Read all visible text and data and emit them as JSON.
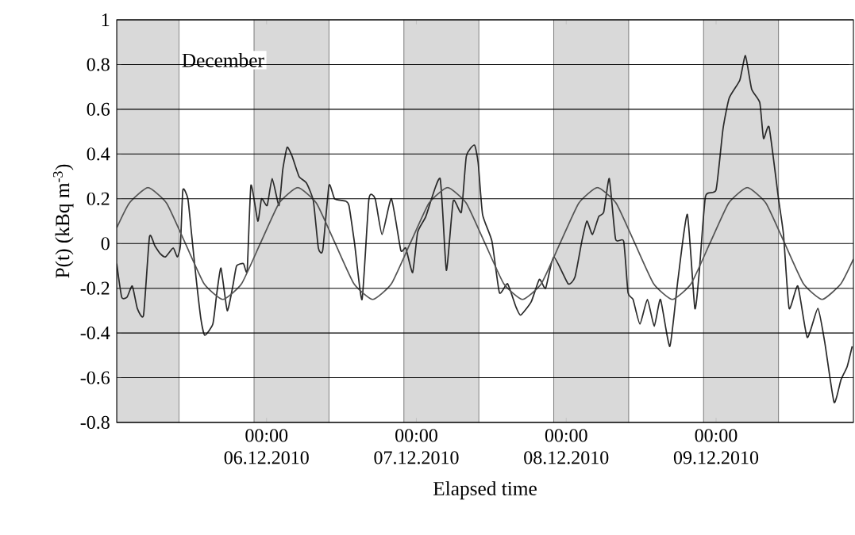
{
  "chart_data": {
    "type": "line",
    "xlabel": "Elapsed time",
    "ylabel": "P(t)   (kBq m$^{-3}$)",
    "annotations": [
      "December"
    ],
    "xlim": [
      "2010-12-05T00:00",
      "2010-12-09T22:00"
    ],
    "ylim": [
      -0.8,
      1
    ],
    "xticks": [
      {
        "value": "2010-12-06T00:00",
        "label": "00:00 06.12.2010"
      },
      {
        "value": "2010-12-07T00:00",
        "label": "00:00 07.12.2010"
      },
      {
        "value": "2010-12-08T00:00",
        "label": "00:00 08.12.2010"
      },
      {
        "value": "2010-12-09T00:00",
        "label": "00:00 09.12.2010"
      }
    ],
    "yticks": [
      -0.8,
      -0.6,
      -0.4,
      -0.2,
      0,
      0.2,
      0.4,
      0.6,
      0.8,
      1
    ],
    "grid": "y",
    "marker": "none",
    "line_style": "solid",
    "bands": [
      {
        "axis": "x",
        "from": "2010-12-05T00:00",
        "to": "2010-12-05T10:00",
        "color": "#d9d9d9"
      },
      {
        "axis": "x",
        "from": "2010-12-05T22:00",
        "to": "2010-12-06T10:00",
        "color": "#d9d9d9"
      },
      {
        "axis": "x",
        "from": "2010-12-06T22:00",
        "to": "2010-12-07T10:00",
        "color": "#d9d9d9"
      },
      {
        "axis": "x",
        "from": "2010-12-07T22:00",
        "to": "2010-12-08T10:00",
        "color": "#d9d9d9"
      },
      {
        "axis": "x",
        "from": "2010-12-08T22:00",
        "to": "2010-12-09T10:00",
        "color": "#d9d9d9"
      }
    ],
    "series": [
      {
        "color": "#2b2b2b",
        "x": [
          "2010-12-05T00:00",
          "2010-12-05T00:48",
          "2010-12-05T01:39",
          "2010-12-05T02:30",
          "2010-12-05T03:18",
          "2010-12-05T04:18",
          "2010-12-05T05:15",
          "2010-12-05T06:06",
          "2010-12-05T06:57",
          "2010-12-05T07:48",
          "2010-12-05T09:03",
          "2010-12-05T09:42",
          "2010-12-05T10:12",
          "2010-12-05T10:36",
          "2010-12-05T11:24",
          "2010-12-05T12:00",
          "2010-12-05T12:42",
          "2010-12-05T13:30",
          "2010-12-05T14:06",
          "2010-12-05T15:24",
          "2010-12-05T16:00",
          "2010-12-05T16:42",
          "2010-12-05T17:42",
          "2010-12-05T18:36",
          "2010-12-05T19:12",
          "2010-12-05T20:18",
          "2010-12-05T20:54",
          "2010-12-05T21:30",
          "2010-12-05T22:36",
          "2010-12-05T23:12",
          "2010-12-06T00:06",
          "2010-12-06T00:54",
          "2010-12-06T02:00",
          "2010-12-06T02:36",
          "2010-12-06T03:18",
          "2010-12-06T04:06",
          "2010-12-06T05:12",
          "2010-12-06T06:24",
          "2010-12-06T07:30",
          "2010-12-06T08:18",
          "2010-12-06T09:00",
          "2010-12-06T10:00",
          "2010-12-06T10:54",
          "2010-12-06T12:36",
          "2010-12-06T13:12",
          "2010-12-06T14:06",
          "2010-12-06T15:18",
          "2010-12-06T16:24",
          "2010-12-06T17:24",
          "2010-12-06T18:30",
          "2010-12-06T20:00",
          "2010-12-06T21:30",
          "2010-12-06T22:18",
          "2010-12-06T23:24",
          "2010-12-07T00:12",
          "2010-12-07T01:30",
          "2010-12-07T03:48",
          "2010-12-07T04:48",
          "2010-12-07T05:54",
          "2010-12-07T07:12",
          "2010-12-07T08:00",
          "2010-12-07T09:18",
          "2010-12-07T09:54",
          "2010-12-07T10:36",
          "2010-12-07T12:06",
          "2010-12-07T13:18",
          "2010-12-07T14:36",
          "2010-12-07T15:54",
          "2010-12-07T16:42",
          "2010-12-07T18:24",
          "2010-12-07T19:42",
          "2010-12-07T20:42",
          "2010-12-07T22:00",
          "2010-12-08T00:18",
          "2010-12-08T01:24",
          "2010-12-08T02:30",
          "2010-12-08T03:18",
          "2010-12-08T04:12",
          "2010-12-08T05:12",
          "2010-12-08T06:00",
          "2010-12-08T06:54",
          "2010-12-08T07:54",
          "2010-12-08T09:12",
          "2010-12-08T09:54",
          "2010-12-08T10:42",
          "2010-12-08T11:48",
          "2010-12-08T13:00",
          "2010-12-08T14:06",
          "2010-12-08T15:06",
          "2010-12-08T16:36",
          "2010-12-08T17:54",
          "2010-12-08T19:24",
          "2010-12-08T20:36",
          "2010-12-08T21:18",
          "2010-12-08T22:18",
          "2010-12-09T00:00",
          "2010-12-09T01:06",
          "2010-12-09T02:06",
          "2010-12-09T03:48",
          "2010-12-09T04:42",
          "2010-12-09T05:42",
          "2010-12-09T07:00",
          "2010-12-09T07:36",
          "2010-12-09T08:30",
          "2010-12-09T10:00",
          "2010-12-09T10:48",
          "2010-12-09T11:42",
          "2010-12-09T13:06",
          "2010-12-09T14:36",
          "2010-12-09T16:18",
          "2010-12-09T17:24",
          "2010-12-09T18:54",
          "2010-12-09T20:00",
          "2010-12-09T21:00",
          "2010-12-09T21:48"
        ],
        "values": [
          -0.09,
          -0.24,
          -0.24,
          -0.19,
          -0.29,
          -0.32,
          0.03,
          -0.01,
          -0.045,
          -0.06,
          -0.02,
          -0.06,
          -0.01,
          0.24,
          0.2,
          0.04,
          -0.15,
          -0.34,
          -0.41,
          -0.36,
          -0.23,
          -0.11,
          -0.3,
          -0.19,
          -0.1,
          -0.09,
          -0.12,
          0.26,
          0.1,
          0.2,
          0.17,
          0.29,
          0.17,
          0.33,
          0.43,
          0.39,
          0.3,
          0.27,
          0.19,
          -0.02,
          -0.03,
          0.26,
          0.2,
          0.19,
          0.17,
          0.0,
          -0.25,
          0.2,
          0.2,
          0.04,
          0.2,
          -0.03,
          -0.02,
          -0.13,
          0.05,
          0.12,
          0.29,
          -0.12,
          0.19,
          0.14,
          0.39,
          0.44,
          0.36,
          0.13,
          0.01,
          -0.22,
          -0.18,
          -0.28,
          -0.32,
          -0.26,
          -0.16,
          -0.2,
          -0.06,
          -0.18,
          -0.15,
          0.01,
          0.1,
          0.04,
          0.12,
          0.14,
          0.29,
          0.02,
          0.01,
          -0.22,
          -0.25,
          -0.36,
          -0.25,
          -0.37,
          -0.25,
          -0.46,
          -0.16,
          0.13,
          -0.29,
          -0.13,
          0.21,
          0.24,
          0.51,
          0.65,
          0.73,
          0.84,
          0.69,
          0.63,
          0.47,
          0.52,
          0.2,
          0.04,
          -0.29,
          -0.19,
          -0.42,
          -0.29,
          -0.44,
          -0.71,
          -0.61,
          -0.55,
          -0.46
        ]
      },
      {
        "color": "#555555",
        "x": [
          "2010-12-05T00:00",
          "2010-12-05T02:00",
          "2010-12-05T05:00",
          "2010-12-05T08:00",
          "2010-12-05T11:00",
          "2010-12-05T14:00",
          "2010-12-05T17:00",
          "2010-12-05T20:00",
          "2010-12-05T23:00",
          "2010-12-06T02:00",
          "2010-12-06T05:00",
          "2010-12-06T08:00",
          "2010-12-06T11:00",
          "2010-12-06T14:00",
          "2010-12-06T17:00",
          "2010-12-06T20:00",
          "2010-12-06T23:00",
          "2010-12-07T02:00",
          "2010-12-07T05:00",
          "2010-12-07T08:00",
          "2010-12-07T11:00",
          "2010-12-07T14:00",
          "2010-12-07T17:00",
          "2010-12-07T20:00",
          "2010-12-07T23:00",
          "2010-12-08T02:00",
          "2010-12-08T05:00",
          "2010-12-08T08:00",
          "2010-12-08T11:00",
          "2010-12-08T14:00",
          "2010-12-08T17:00",
          "2010-12-08T20:00",
          "2010-12-08T23:00",
          "2010-12-09T02:00",
          "2010-12-09T05:00",
          "2010-12-09T08:00",
          "2010-12-09T11:00",
          "2010-12-09T14:00",
          "2010-12-09T17:00",
          "2010-12-09T20:00",
          "2010-12-09T22:00"
        ],
        "values": [
          0.07,
          0.18,
          0.25,
          0.18,
          0,
          -0.18,
          -0.25,
          -0.18,
          0,
          0.18,
          0.25,
          0.18,
          0,
          -0.18,
          -0.25,
          -0.18,
          0,
          0.18,
          0.25,
          0.18,
          0,
          -0.18,
          -0.25,
          -0.18,
          0,
          0.18,
          0.25,
          0.18,
          0,
          -0.18,
          -0.25,
          -0.18,
          0,
          0.18,
          0.25,
          0.18,
          0,
          -0.18,
          -0.25,
          -0.18,
          -0.07
        ]
      }
    ]
  }
}
